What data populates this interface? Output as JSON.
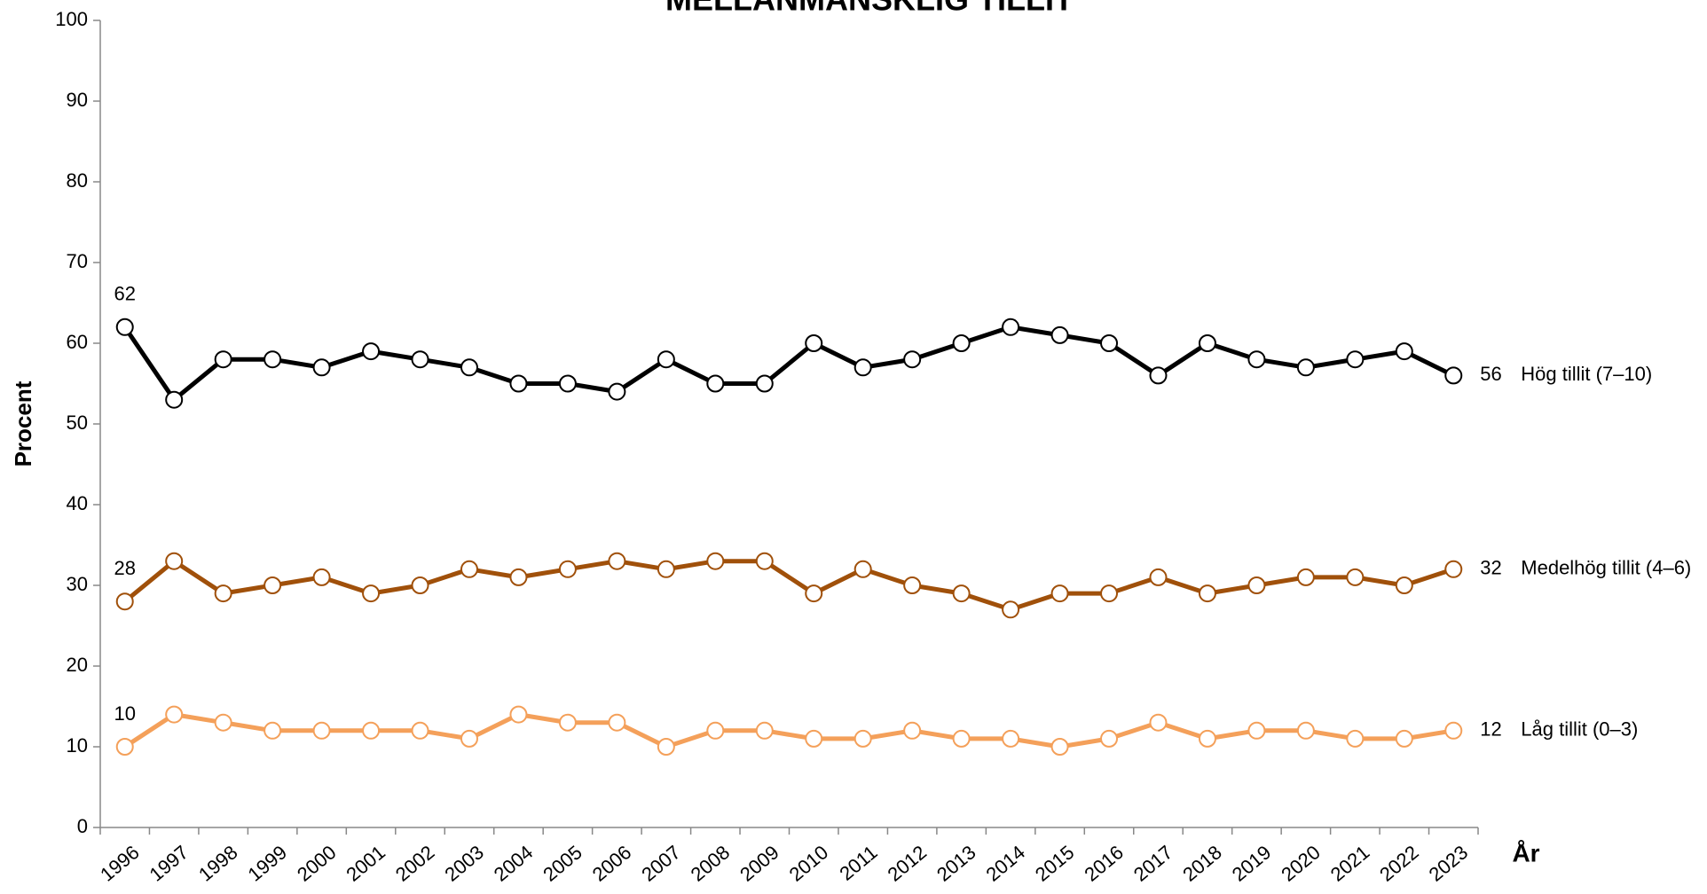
{
  "chart_data": {
    "type": "line",
    "title": "MELLANMÄNSKLIG TILLIT",
    "y_label": "Procent",
    "x_label": "År",
    "categories": [
      "1996",
      "1997",
      "1998",
      "1999",
      "2000",
      "2001",
      "2002",
      "2003",
      "2004",
      "2005",
      "2006",
      "2007",
      "2008",
      "2009",
      "2010",
      "2011",
      "2012",
      "2013",
      "2014",
      "2015",
      "2016",
      "2017",
      "2018",
      "2019",
      "2020",
      "2021",
      "2022",
      "2023"
    ],
    "ylim": [
      0,
      100
    ],
    "yticks": [
      0,
      10,
      20,
      30,
      40,
      50,
      60,
      70,
      80,
      90,
      100
    ],
    "series": [
      {
        "name": "Hög tillit (7–10)",
        "color": "#000000",
        "values": [
          62,
          53,
          58,
          58,
          57,
          59,
          58,
          57,
          55,
          55,
          54,
          58,
          55,
          55,
          60,
          57,
          58,
          60,
          62,
          61,
          60,
          56,
          60,
          58,
          57,
          58,
          59,
          56
        ]
      },
      {
        "name": "Medelhög tillit (4–6)",
        "color": "#a0500a",
        "values": [
          28,
          33,
          29,
          30,
          31,
          29,
          30,
          32,
          31,
          32,
          33,
          32,
          33,
          33,
          29,
          32,
          30,
          29,
          27,
          29,
          29,
          31,
          29,
          30,
          31,
          31,
          30,
          32
        ]
      },
      {
        "name": "Låg tillit (0–3)",
        "color": "#f4a05a",
        "values": [
          10,
          14,
          13,
          12,
          12,
          12,
          12,
          11,
          14,
          13,
          13,
          10,
          12,
          12,
          11,
          11,
          12,
          11,
          11,
          10,
          11,
          13,
          11,
          12,
          12,
          11,
          11,
          12
        ]
      }
    ]
  }
}
